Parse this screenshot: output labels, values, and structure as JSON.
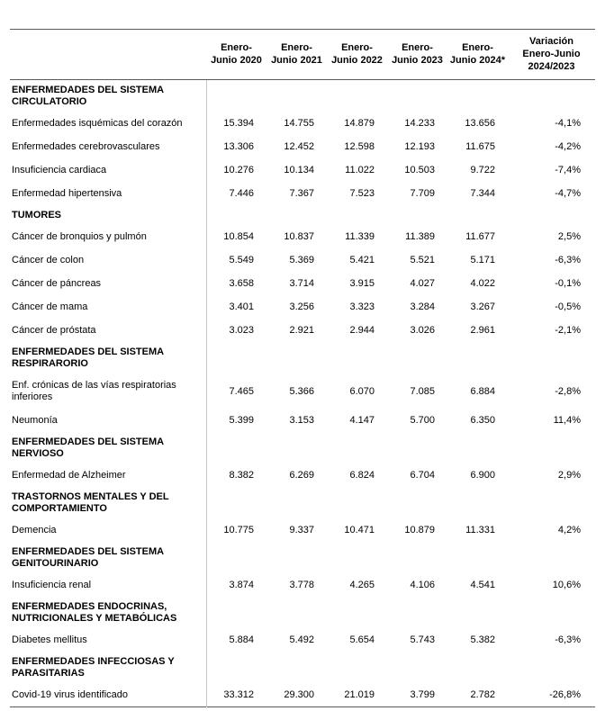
{
  "table": {
    "columns": [
      {
        "lines": [
          "Enero-",
          "Junio 2020"
        ]
      },
      {
        "lines": [
          "Enero-",
          "Junio 2021"
        ]
      },
      {
        "lines": [
          "Enero-",
          "Junio 2022"
        ]
      },
      {
        "lines": [
          "Enero-",
          "Junio 2023"
        ]
      },
      {
        "lines": [
          "Enero-",
          "Junio 2024*"
        ]
      },
      {
        "lines": [
          "Variación",
          "Enero-Junio",
          "2024/2023"
        ]
      }
    ],
    "rows": [
      {
        "type": "section",
        "label": "ENFERMEDADES DEL SISTEMA CIRCULATORIO"
      },
      {
        "type": "data",
        "label": "Enfermedades isquémicas del corazón",
        "values": [
          "15.394",
          "14.755",
          "14.879",
          "14.233",
          "13.656",
          "-4,1%"
        ]
      },
      {
        "type": "data",
        "label": "Enfermedades cerebrovasculares",
        "values": [
          "13.306",
          "12.452",
          "12.598",
          "12.193",
          "11.675",
          "-4,2%"
        ]
      },
      {
        "type": "data",
        "label": "Insuficiencia cardiaca",
        "values": [
          "10.276",
          "10.134",
          "11.022",
          "10.503",
          "9.722",
          "-7,4%"
        ]
      },
      {
        "type": "data",
        "label": "Enfermedad hipertensiva",
        "values": [
          "7.446",
          "7.367",
          "7.523",
          "7.709",
          "7.344",
          "-4,7%"
        ]
      },
      {
        "type": "section",
        "label": "TUMORES"
      },
      {
        "type": "data",
        "label": "Cáncer de bronquios y pulmón",
        "values": [
          "10.854",
          "10.837",
          "11.339",
          "11.389",
          "11.677",
          "2,5%"
        ]
      },
      {
        "type": "data",
        "label": "Cáncer de colon",
        "values": [
          "5.549",
          "5.369",
          "5.421",
          "5.521",
          "5.171",
          "-6,3%"
        ]
      },
      {
        "type": "data",
        "label": "Cáncer de páncreas",
        "values": [
          "3.658",
          "3.714",
          "3.915",
          "4.027",
          "4.022",
          "-0,1%"
        ]
      },
      {
        "type": "data",
        "label": "Cáncer de mama",
        "values": [
          "3.401",
          "3.256",
          "3.323",
          "3.284",
          "3.267",
          "-0,5%"
        ]
      },
      {
        "type": "data",
        "label": "Cáncer de próstata",
        "values": [
          "3.023",
          "2.921",
          "2.944",
          "3.026",
          "2.961",
          "-2,1%"
        ]
      },
      {
        "type": "section",
        "label": "ENFERMEDADES DEL SISTEMA RESPIRARORIO"
      },
      {
        "type": "data",
        "label": "Enf. crónicas de las vías respiratorias inferiores",
        "values": [
          "7.465",
          "5.366",
          "6.070",
          "7.085",
          "6.884",
          "-2,8%"
        ]
      },
      {
        "type": "data",
        "label": "Neumonía",
        "values": [
          "5.399",
          "3.153",
          "4.147",
          "5.700",
          "6.350",
          "11,4%"
        ]
      },
      {
        "type": "section",
        "label": "ENFERMEDADES DEL SISTEMA NERVIOSO"
      },
      {
        "type": "data",
        "label": "Enfermedad de Alzheimer",
        "values": [
          "8.382",
          "6.269",
          "6.824",
          "6.704",
          "6.900",
          "2,9%"
        ]
      },
      {
        "type": "section",
        "label": "TRASTORNOS MENTALES Y DEL COMPORTAMIENTO"
      },
      {
        "type": "data",
        "label": "Demencia",
        "values": [
          "10.775",
          "9.337",
          "10.471",
          "10.879",
          "11.331",
          "4,2%"
        ]
      },
      {
        "type": "section",
        "label": "ENFERMEDADES DEL SISTEMA GENITOURINARIO"
      },
      {
        "type": "data",
        "label": "Insuficiencia renal",
        "values": [
          "3.874",
          "3.778",
          "4.265",
          "4.106",
          "4.541",
          "10,6%"
        ]
      },
      {
        "type": "section",
        "label": "ENFERMEDADES ENDOCRINAS, NUTRICIONALES Y METABÓLICAS"
      },
      {
        "type": "data",
        "label": "Diabetes mellitus",
        "values": [
          "5.884",
          "5.492",
          "5.654",
          "5.743",
          "5.382",
          "-6,3%"
        ]
      },
      {
        "type": "section",
        "label": "ENFERMEDADES INFECCIOSAS Y PARASITARIAS"
      },
      {
        "type": "data",
        "label": "Covid-19 virus identificado",
        "values": [
          "33.312",
          "29.300",
          "21.019",
          "3.799",
          "2.782",
          "-26,8%"
        ]
      }
    ]
  },
  "colors": {
    "rule": "#595959",
    "divider": "#c6c6c6",
    "text": "#000000",
    "background": "#ffffff"
  }
}
